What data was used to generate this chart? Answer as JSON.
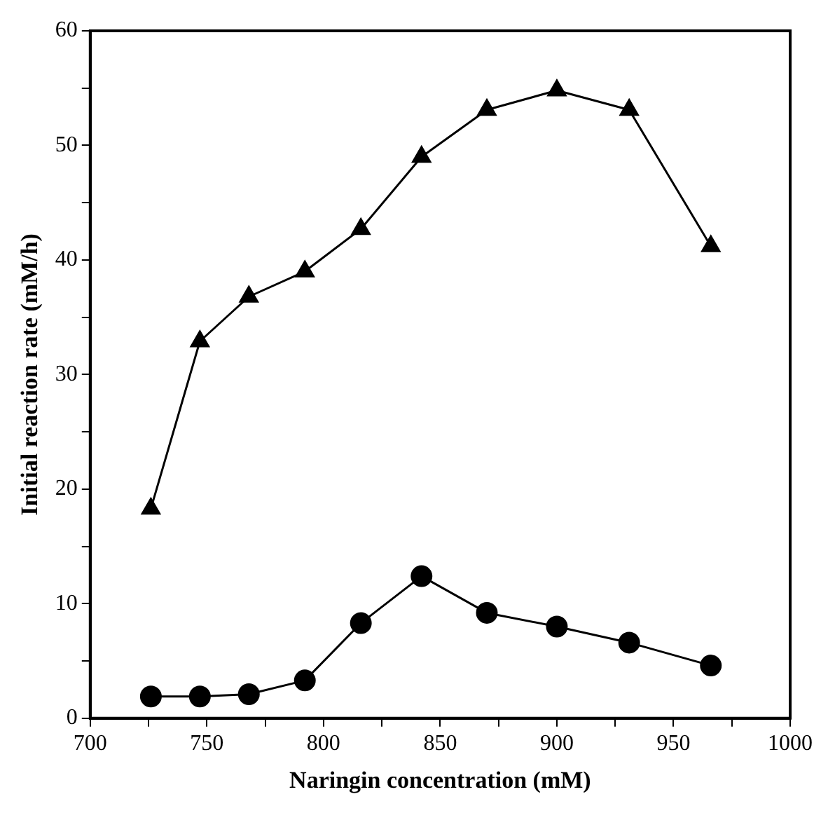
{
  "chart_data": {
    "type": "line",
    "xlabel": "Naringin concentration (mM)",
    "ylabel": "Initial reaction rate (mM/h)",
    "x": [
      726,
      747,
      768,
      792,
      816,
      842,
      870,
      900,
      931,
      966
    ],
    "series": [
      {
        "color": "#000000",
        "marker": "triangle",
        "values": [
          18.3,
          32.9,
          36.8,
          39.0,
          42.7,
          49.0,
          53.1,
          54.8,
          53.1,
          41.2
        ]
      },
      {
        "color": "#000000",
        "marker": "circle",
        "values": [
          1.9,
          1.9,
          2.1,
          3.3,
          8.3,
          12.4,
          9.2,
          8.0,
          6.6,
          4.6
        ]
      }
    ],
    "xlim": [
      700,
      1000
    ],
    "xticks": [
      700,
      {
        "value": 725,
        "label": null
      },
      750,
      {
        "value": 775,
        "label": null
      },
      800,
      {
        "value": 825,
        "label": null
      },
      850,
      {
        "value": 875,
        "label": null
      },
      900,
      {
        "value": 925,
        "label": null
      },
      950,
      {
        "value": 975,
        "label": null
      },
      1000
    ],
    "ylim": [
      0,
      60
    ],
    "yticks": [
      0,
      {
        "value": 5,
        "label": null
      },
      10,
      {
        "value": 15,
        "label": null
      },
      20,
      {
        "value": 25,
        "label": null
      },
      30,
      {
        "value": 35,
        "label": null
      },
      40,
      {
        "value": 45,
        "label": null
      },
      50,
      {
        "value": 55,
        "label": null
      },
      60
    ],
    "grid": false,
    "legend": false,
    "line_style": "solid"
  }
}
